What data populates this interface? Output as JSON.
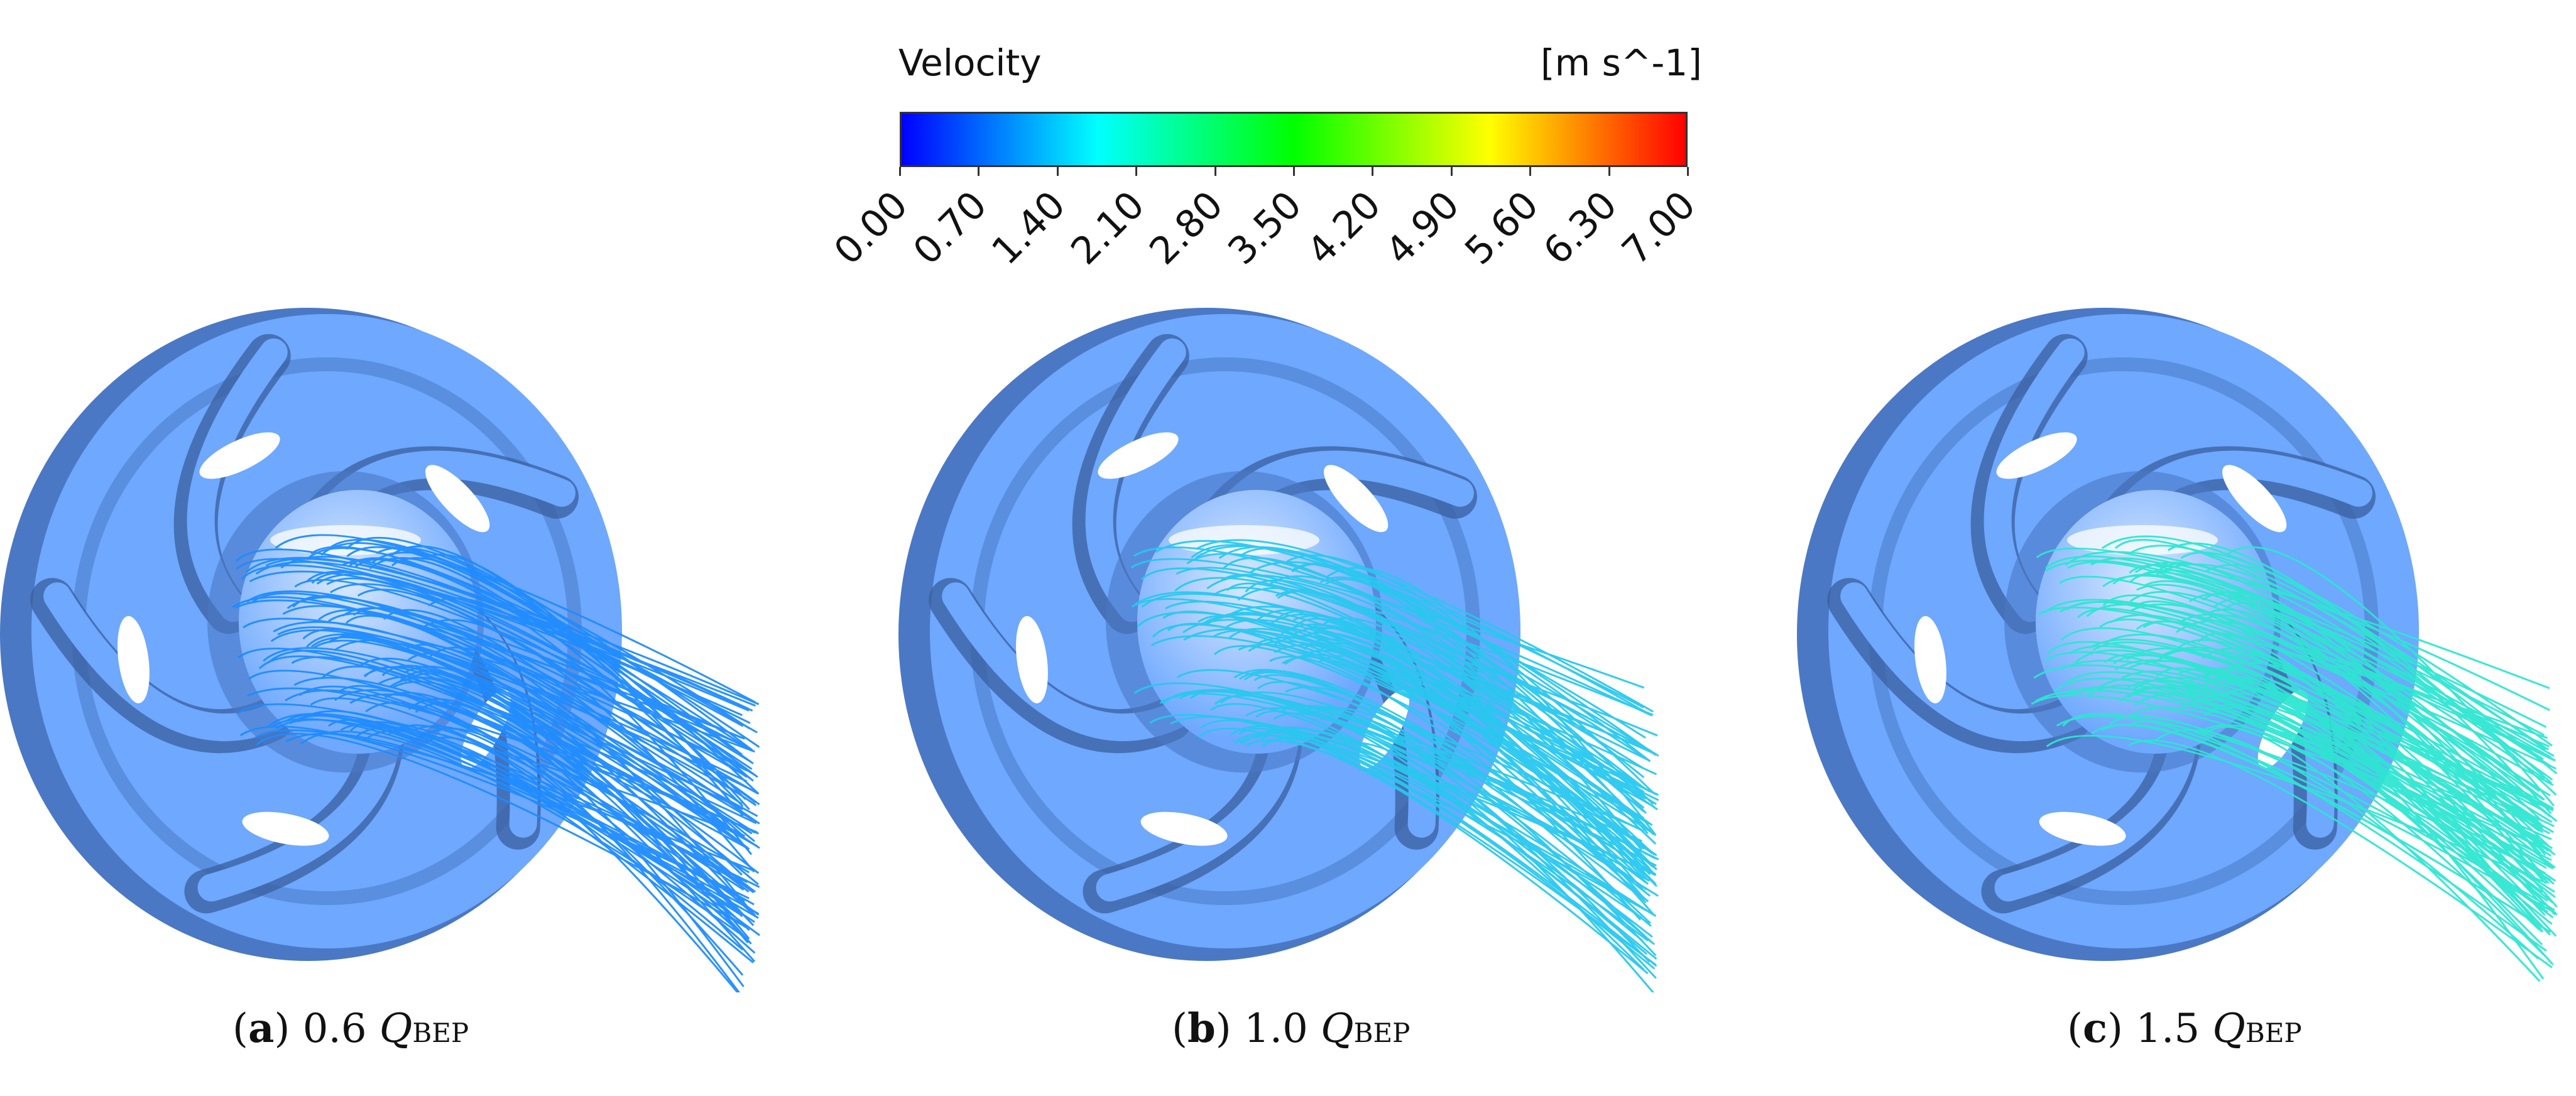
{
  "legend": {
    "title": "Velocity",
    "unit": "[m s^-1]",
    "ticks": [
      "0.00",
      "0.70",
      "1.40",
      "2.10",
      "2.80",
      "3.50",
      "4.20",
      "4.90",
      "5.60",
      "6.30",
      "7.00"
    ],
    "range": [
      0,
      7
    ],
    "colormap": [
      "#0000ff",
      "#0080ff",
      "#00ffff",
      "#00ff80",
      "#00ff00",
      "#80ff00",
      "#ffff00",
      "#ff8000",
      "#ff0000"
    ]
  },
  "panels": [
    {
      "letter": "a",
      "value": "0.6",
      "q": "Q",
      "sub": "BEP",
      "streamline_color": "#1e8cff",
      "velocity": 1.0
    },
    {
      "letter": "b",
      "value": "1.0",
      "q": "Q",
      "sub": "BEP",
      "streamline_color": "#28c8f0",
      "velocity": 2.0
    },
    {
      "letter": "c",
      "value": "1.5",
      "q": "Q",
      "sub": "BEP",
      "streamline_color": "#2ee6d2",
      "velocity": 2.4
    }
  ],
  "colors": {
    "impeller_face": "#6ea8ff",
    "impeller_dark": "#4b78c4",
    "impeller_shadow": "#3a5f9e"
  }
}
